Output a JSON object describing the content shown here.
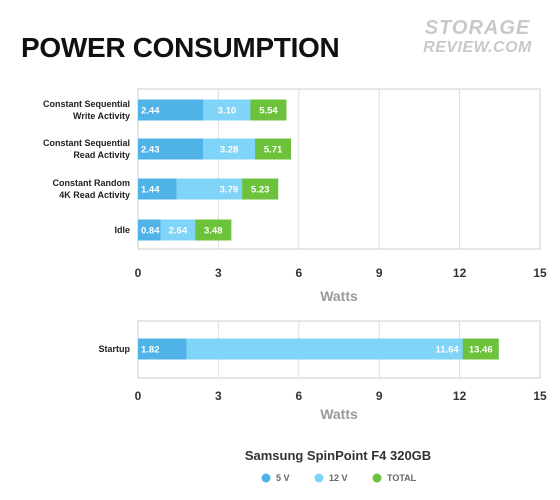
{
  "page": {
    "title": "POWER CONSUMPTION",
    "logo_line1": "STORAGE",
    "logo_line2": "REVIEW.COM"
  },
  "colors": {
    "v5": "#4fb3e8",
    "v12": "#7fd4f8",
    "total": "#6cc23a"
  },
  "chart_data": [
    {
      "type": "bar",
      "orientation": "horizontal",
      "stacked": true,
      "categories": [
        "Constant Sequential\nWrite Activity",
        "Constant Sequential\nRead Activity",
        "Constant Random\n4K Read Activity",
        "Idle"
      ],
      "series": [
        {
          "name": "5 V",
          "values": [
            2.44,
            2.43,
            1.44,
            0.84
          ]
        },
        {
          "name": "12 V",
          "values": [
            3.1,
            3.28,
            3.79,
            2.64
          ]
        },
        {
          "name": "TOTAL",
          "values": [
            5.54,
            5.71,
            5.23,
            3.48
          ]
        }
      ],
      "xlabel": "Watts",
      "xlim": [
        0,
        15
      ],
      "xticks": [
        0,
        3,
        6,
        9,
        12,
        15
      ],
      "grid": true
    },
    {
      "type": "bar",
      "orientation": "horizontal",
      "stacked": true,
      "categories": [
        "Startup"
      ],
      "series": [
        {
          "name": "5 V",
          "values": [
            1.82
          ]
        },
        {
          "name": "12 V",
          "values": [
            11.64
          ]
        },
        {
          "name": "TOTAL",
          "values": [
            13.46
          ]
        }
      ],
      "xlabel": "Watts",
      "xlim": [
        0,
        15
      ],
      "xticks": [
        0,
        3,
        6,
        9,
        12,
        15
      ],
      "grid": true
    }
  ],
  "legend": {
    "title": "Samsung SpinPoint F4 320GB",
    "items": [
      "5 V",
      "12 V",
      "TOTAL"
    ],
    "placement": "bottom-center"
  }
}
